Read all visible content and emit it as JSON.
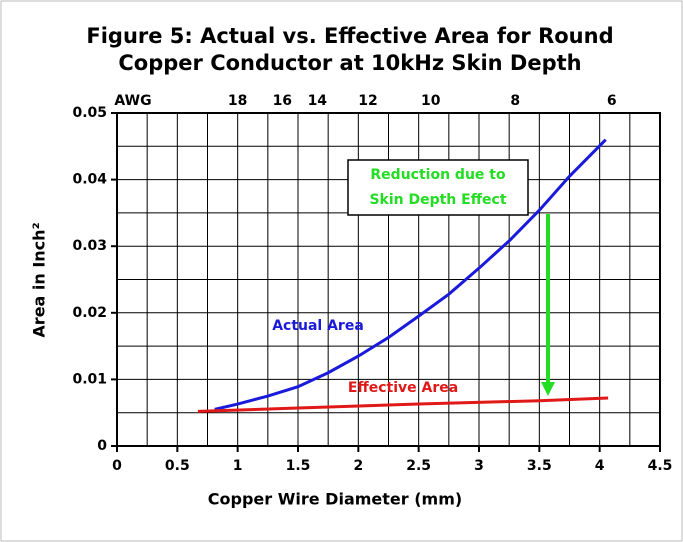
{
  "chart_data": {
    "type": "line",
    "title": [
      "Figure 5: Actual vs. Effective Area for Round",
      "Copper Conductor at 10kHz Skin Depth"
    ],
    "xlabel": "Copper Wire Diameter (mm)",
    "ylabel": "Area in Inch²",
    "xlim": [
      0,
      4.5
    ],
    "xticks": [
      0,
      0.5,
      1,
      1.5,
      2,
      2.5,
      3,
      3.5,
      4,
      4.5
    ],
    "ylim": [
      0,
      0.05
    ],
    "yticks": [
      0,
      0.01,
      0.02,
      0.03,
      0.04,
      0.05
    ],
    "grid": true,
    "grid_step": {
      "x": 0.25,
      "y": 0.005
    },
    "awg": {
      "label": "AWG",
      "gauges": [
        {
          "label": "18",
          "x": 1.0
        },
        {
          "label": "16",
          "x": 1.37
        },
        {
          "label": "14",
          "x": 1.66
        },
        {
          "label": "12",
          "x": 2.08
        },
        {
          "label": "10",
          "x": 2.6
        },
        {
          "label": "8",
          "x": 3.3
        },
        {
          "label": "6",
          "x": 4.1
        }
      ]
    },
    "series": [
      {
        "name": "Actual Area",
        "color": "#1a1adc",
        "x": [
          0.81,
          1.0,
          1.25,
          1.5,
          1.75,
          2.0,
          2.25,
          2.5,
          2.75,
          3.0,
          3.25,
          3.5,
          3.75,
          4.05
        ],
        "values": [
          0.0055,
          0.0063,
          0.0075,
          0.0089,
          0.011,
          0.0135,
          0.0163,
          0.0195,
          0.0228,
          0.0267,
          0.0308,
          0.0354,
          0.0405,
          0.046
        ]
      },
      {
        "name": "Effective Area",
        "color": "#e01818",
        "x": [
          0.67,
          1.5,
          2.5,
          3.5,
          4.07
        ],
        "values": [
          0.0052,
          0.0057,
          0.0063,
          0.0068,
          0.0072
        ]
      }
    ],
    "annotation": {
      "lines": [
        "Reduction due to",
        "Skin Depth Effect"
      ],
      "color": "#22dd22"
    }
  }
}
